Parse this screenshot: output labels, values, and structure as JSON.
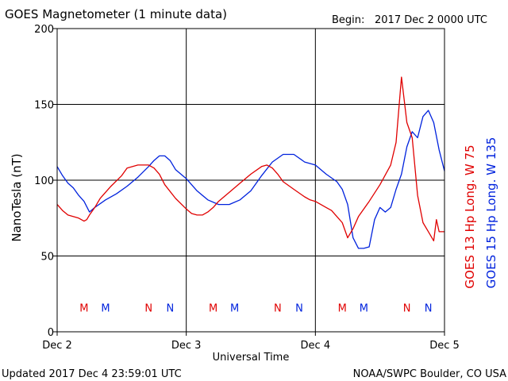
{
  "header": {
    "title": "GOES Magnetometer (1 minute data)",
    "begin_label": "Begin:",
    "begin_value": "2017 Dec 2 0000 UTC"
  },
  "footer": {
    "updated": "Updated 2017 Dec  4 23:59:01 UTC",
    "source": "NOAA/SWPC Boulder, CO USA"
  },
  "legend": {
    "goes13": "GOES 13 Hp  Long. W 75",
    "goes15": "GOES 15 Hp  Long. W 135"
  },
  "colors": {
    "goes13": "#e00000",
    "goes15": "#0022dd",
    "grid": "#000000"
  },
  "chart_data": {
    "type": "line",
    "title": "GOES Magnetometer (1 minute data)",
    "xlabel": "Universal Time",
    "ylabel": "NanoTesla (nT)",
    "xlim": [
      0,
      72
    ],
    "ylim": [
      0,
      200
    ],
    "x_ticks": [
      {
        "x": 0,
        "label": "Dec 2"
      },
      {
        "x": 24,
        "label": "Dec 3"
      },
      {
        "x": 48,
        "label": "Dec 4"
      },
      {
        "x": 72,
        "label": "Dec 5"
      }
    ],
    "y_ticks": [
      0,
      50,
      100,
      150,
      200
    ],
    "grid": true,
    "x_unit": "hours since 2017-12-02 00:00 UTC",
    "series": [
      {
        "name": "GOES 13 Hp  Long. W 75",
        "color": "#e00000",
        "x": [
          0,
          1,
          2,
          4,
          5,
          5.5,
          6,
          7,
          8,
          10,
          12,
          13,
          15,
          17,
          18,
          19,
          20,
          22,
          24,
          25,
          26,
          27,
          28,
          29,
          30,
          32,
          34,
          36,
          38,
          39,
          40,
          41,
          42,
          44,
          46,
          47,
          48,
          49,
          50,
          51,
          52,
          53,
          54,
          55,
          56,
          58,
          60,
          62,
          63,
          64,
          65,
          66,
          67,
          68,
          69,
          70,
          70.5,
          71,
          72
        ],
        "y": [
          84,
          80,
          77,
          75,
          73,
          74,
          77,
          82,
          88,
          96,
          103,
          108,
          110,
          110,
          108,
          104,
          97,
          88,
          81,
          78,
          77,
          77,
          79,
          82,
          86,
          92,
          98,
          104,
          109,
          110,
          108,
          104,
          99,
          94,
          89,
          87,
          86,
          84,
          82,
          80,
          76,
          72,
          62,
          68,
          76,
          86,
          97,
          110,
          125,
          168,
          138,
          128,
          90,
          72,
          66,
          60,
          74,
          66,
          66
        ],
        "markers": [
          {
            "label": "M",
            "x": 5
          },
          {
            "label": "N",
            "x": 17
          }
        ]
      },
      {
        "name": "GOES 15 Hp  Long. W 135",
        "color": "#0022dd",
        "x": [
          0,
          1,
          2,
          3,
          4,
          5,
          6,
          7,
          9,
          11,
          13,
          15,
          17,
          18,
          19,
          20,
          21,
          22,
          24,
          26,
          28,
          30,
          32,
          34,
          36,
          38,
          40,
          42,
          44,
          46,
          48,
          50,
          52,
          53,
          54,
          55,
          56,
          57,
          58,
          59,
          60,
          61,
          62,
          63,
          64,
          65,
          66,
          67,
          68,
          69,
          70,
          71,
          72
        ],
        "y": [
          109,
          103,
          98,
          95,
          90,
          86,
          79,
          82,
          87,
          91,
          96,
          102,
          109,
          113,
          116,
          116,
          113,
          107,
          101,
          93,
          87,
          84,
          84,
          87,
          93,
          103,
          112,
          117,
          117,
          112,
          110,
          104,
          99,
          94,
          84,
          62,
          55,
          55,
          56,
          74,
          82,
          79,
          82,
          94,
          104,
          122,
          132,
          128,
          142,
          146,
          138,
          120,
          106
        ],
        "markers": [
          {
            "label": "M",
            "x": 9
          },
          {
            "label": "N",
            "x": 21
          }
        ]
      }
    ],
    "day_markers": [
      {
        "label": "M",
        "x": 5,
        "series": 0
      },
      {
        "label": "M",
        "x": 9,
        "series": 1
      },
      {
        "label": "N",
        "x": 17,
        "series": 0
      },
      {
        "label": "N",
        "x": 21,
        "series": 1
      },
      {
        "label": "M",
        "x": 29,
        "series": 0
      },
      {
        "label": "M",
        "x": 33,
        "series": 1
      },
      {
        "label": "N",
        "x": 41,
        "series": 0
      },
      {
        "label": "N",
        "x": 45,
        "series": 1
      },
      {
        "label": "M",
        "x": 53,
        "series": 0
      },
      {
        "label": "M",
        "x": 57,
        "series": 1
      },
      {
        "label": "N",
        "x": 65,
        "series": 0
      },
      {
        "label": "N",
        "x": 69,
        "series": 1
      }
    ],
    "day_marker_y": 16
  }
}
